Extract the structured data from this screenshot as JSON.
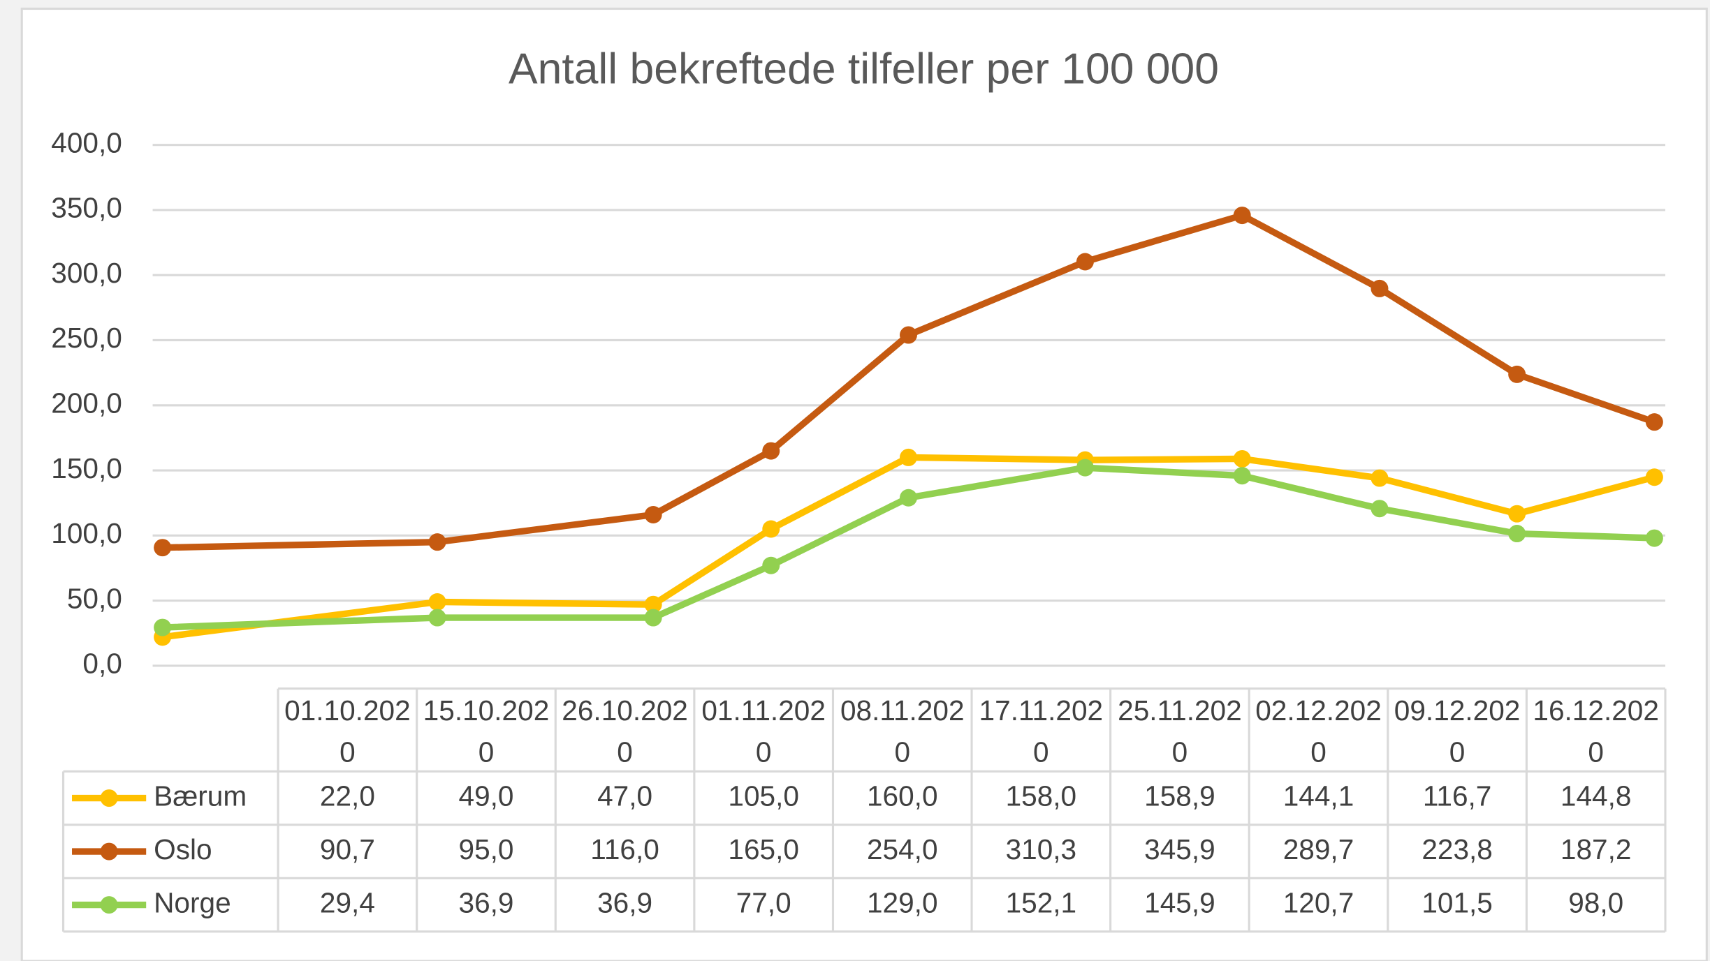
{
  "chart_data": {
    "type": "line",
    "title": "Antall bekreftede tilfeller per 100 000",
    "x": [
      "01.10.2020",
      "15.10.2020",
      "26.10.2020",
      "01.11.2020",
      "08.11.2020",
      "17.11.2020",
      "25.11.2020",
      "02.12.2020",
      "09.12.2020",
      "16.12.2020"
    ],
    "series": [
      {
        "name": "Bærum",
        "color": "#ffc000",
        "values": [
          22.0,
          49.0,
          47.0,
          105.0,
          160.0,
          158.0,
          158.9,
          144.1,
          116.7,
          144.8
        ],
        "value_labels": [
          "22,0",
          "49,0",
          "47,0",
          "105,0",
          "160,0",
          "158,0",
          "158,9",
          "144,1",
          "116,7",
          "144,8"
        ]
      },
      {
        "name": "Oslo",
        "color": "#c55a11",
        "values": [
          90.7,
          95.0,
          116.0,
          165.0,
          254.0,
          310.3,
          345.9,
          289.7,
          223.8,
          187.2
        ],
        "value_labels": [
          "90,7",
          "95,0",
          "116,0",
          "165,0",
          "254,0",
          "310,3",
          "345,9",
          "289,7",
          "223,8",
          "187,2"
        ]
      },
      {
        "name": "Norge",
        "color": "#92d050",
        "values": [
          29.4,
          36.9,
          36.9,
          77.0,
          129.0,
          152.1,
          145.9,
          120.7,
          101.5,
          98.0
        ],
        "value_labels": [
          "29,4",
          "36,9",
          "36,9",
          "77,0",
          "129,0",
          "152,1",
          "145,9",
          "120,7",
          "101,5",
          "98,0"
        ]
      }
    ],
    "ylim": [
      0,
      400
    ],
    "yticks": [
      {
        "value": 0,
        "label": "0,0"
      },
      {
        "value": 50,
        "label": "50,0"
      },
      {
        "value": 100,
        "label": "100,0"
      },
      {
        "value": 150,
        "label": "150,0"
      },
      {
        "value": 200,
        "label": "200,0"
      },
      {
        "value": 250,
        "label": "250,0"
      },
      {
        "value": 300,
        "label": "300,0"
      },
      {
        "value": 350,
        "label": "350,0"
      },
      {
        "value": 400,
        "label": "400,0"
      }
    ],
    "grid": true
  }
}
